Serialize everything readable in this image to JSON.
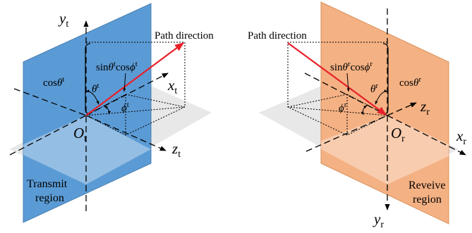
{
  "colors": {
    "transmit_plane": "#5b9bd5",
    "receive_plane": "#f4b183",
    "path_arrow": "#e8202a",
    "ground_plane": "#d9d9d9"
  },
  "transmit": {
    "region_line1": "Transmit",
    "region_line2": "region",
    "path_label": "Path direction",
    "origin": "O",
    "origin_sub": "t",
    "axis_x": "x",
    "axis_y": "y",
    "axis_z": "z",
    "axis_sub": "t",
    "cos_theta": "cos",
    "theta": "θ",
    "phi": "ϕ",
    "sup": "t",
    "sin": "sin"
  },
  "receive": {
    "region_line1": "Reveive",
    "region_line2": "region",
    "path_label": "Path direction",
    "origin": "O",
    "origin_sub": "r",
    "axis_x": "x",
    "axis_y": "y",
    "axis_z": "z",
    "axis_sub": "r",
    "cos_theta": "cos",
    "theta": "θ",
    "phi": "ϕ",
    "sup": "r",
    "sin": "sin"
  }
}
